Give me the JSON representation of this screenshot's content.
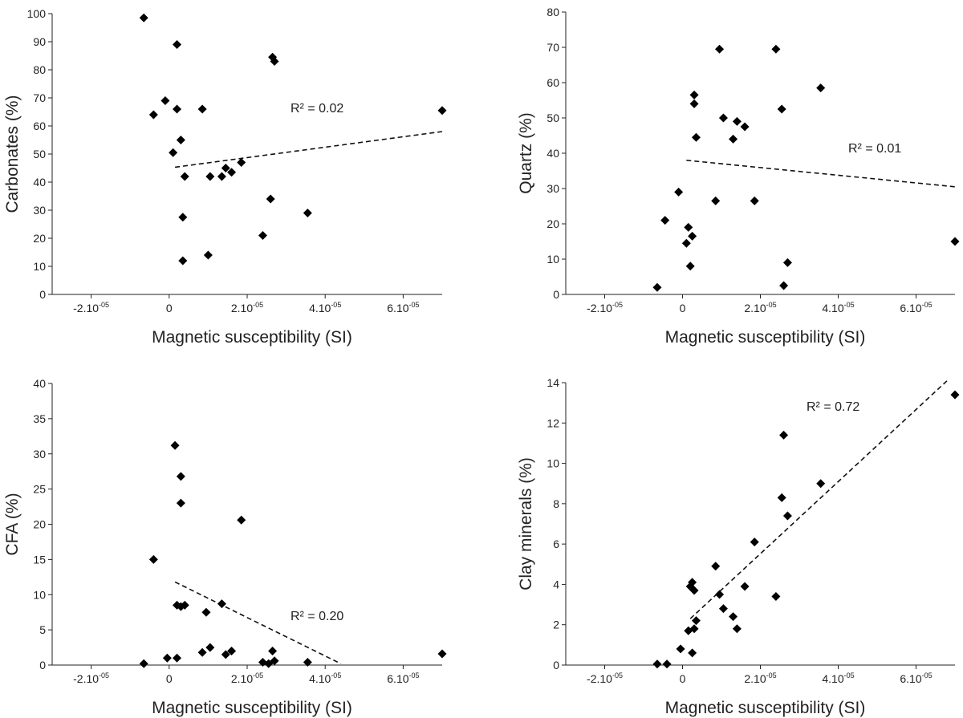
{
  "chart_data": [
    {
      "type": "scatter",
      "xlabel": "Magnetic susceptibility (SI)",
      "ylabel": "Carbonates (%)",
      "xlim": [
        -3e-05,
        7e-05
      ],
      "ylim": [
        0,
        100
      ],
      "yticks": [
        0,
        10,
        20,
        30,
        40,
        50,
        60,
        70,
        80,
        90,
        100
      ],
      "xticks": [
        {
          "value": -2e-05,
          "mantissa": "-2.10",
          "exponent": "-05"
        },
        {
          "value": 0,
          "mantissa": "0",
          "exponent": ""
        },
        {
          "value": 2e-05,
          "mantissa": "2.10",
          "exponent": "-05"
        },
        {
          "value": 4e-05,
          "mantissa": "4.10",
          "exponent": "-05"
        },
        {
          "value": 6e-05,
          "mantissa": "6.10",
          "exponent": "-05"
        }
      ],
      "grid": false,
      "r2_text": "R² = 0.02",
      "trendline": {
        "x": [
          1.5e-06,
          7e-05
        ],
        "y": [
          45.3,
          58
        ]
      },
      "points": [
        [
          -6.5e-06,
          98.5
        ],
        [
          -4e-06,
          64
        ],
        [
          -1e-06,
          69
        ],
        [
          1e-06,
          50.5
        ],
        [
          2e-06,
          89
        ],
        [
          2e-06,
          66
        ],
        [
          3e-06,
          55
        ],
        [
          3.5e-06,
          27.5
        ],
        [
          3.5e-06,
          12
        ],
        [
          4e-06,
          42
        ],
        [
          8.5e-06,
          66
        ],
        [
          1e-05,
          14
        ],
        [
          1.05e-05,
          42
        ],
        [
          1.35e-05,
          42
        ],
        [
          1.45e-05,
          45
        ],
        [
          1.6e-05,
          43.5
        ],
        [
          1.85e-05,
          47
        ],
        [
          2.4e-05,
          21
        ],
        [
          2.6e-05,
          34
        ],
        [
          2.65e-05,
          84.5
        ],
        [
          2.7e-05,
          83
        ],
        [
          3.55e-05,
          29
        ],
        [
          7e-05,
          65.5
        ]
      ]
    },
    {
      "type": "scatter",
      "xlabel": "Magnetic susceptibility (SI)",
      "ylabel": "Quartz (%)",
      "xlim": [
        -3e-05,
        7e-05
      ],
      "ylim": [
        0,
        80
      ],
      "yticks": [
        0,
        10,
        20,
        30,
        40,
        50,
        60,
        70,
        80
      ],
      "xticks": [
        {
          "value": -2e-05,
          "mantissa": "-2.10",
          "exponent": "-05"
        },
        {
          "value": 0,
          "mantissa": "0",
          "exponent": ""
        },
        {
          "value": 2e-05,
          "mantissa": "2.10",
          "exponent": "-05"
        },
        {
          "value": 4e-05,
          "mantissa": "4.10",
          "exponent": "-05"
        },
        {
          "value": 6e-05,
          "mantissa": "6.10",
          "exponent": "-05"
        }
      ],
      "grid": false,
      "r2_text": "R² = 0.01",
      "trendline": {
        "x": [
          1e-06,
          7e-05
        ],
        "y": [
          38,
          30.5
        ]
      },
      "points": [
        [
          -6.5e-06,
          2
        ],
        [
          -4.5e-06,
          21
        ],
        [
          -1e-06,
          29
        ],
        [
          1e-06,
          14.5
        ],
        [
          1.5e-06,
          19
        ],
        [
          2e-06,
          8
        ],
        [
          2.5e-06,
          16.5
        ],
        [
          3e-06,
          56.5
        ],
        [
          3e-06,
          54
        ],
        [
          3.5e-06,
          44.5
        ],
        [
          8.5e-06,
          26.5
        ],
        [
          9.5e-06,
          69.5
        ],
        [
          1.05e-05,
          50
        ],
        [
          1.3e-05,
          44
        ],
        [
          1.4e-05,
          49
        ],
        [
          1.6e-05,
          47.5
        ],
        [
          1.85e-05,
          26.5
        ],
        [
          2.4e-05,
          69.5
        ],
        [
          2.55e-05,
          52.5
        ],
        [
          2.6e-05,
          2.5
        ],
        [
          2.7e-05,
          9
        ],
        [
          3.55e-05,
          58.5
        ],
        [
          7e-05,
          15
        ]
      ]
    },
    {
      "type": "scatter",
      "xlabel": "Magnetic susceptibility (SI)",
      "ylabel": "CFA (%)",
      "xlim": [
        -3e-05,
        7e-05
      ],
      "ylim": [
        0,
        40
      ],
      "yticks": [
        0,
        5,
        10,
        15,
        20,
        25,
        30,
        35,
        40
      ],
      "xticks": [
        {
          "value": -2e-05,
          "mantissa": "-2.10",
          "exponent": "-05"
        },
        {
          "value": 0,
          "mantissa": "0",
          "exponent": ""
        },
        {
          "value": 2e-05,
          "mantissa": "2.10",
          "exponent": "-05"
        },
        {
          "value": 4e-05,
          "mantissa": "4.10",
          "exponent": "-05"
        },
        {
          "value": 6e-05,
          "mantissa": "6.10",
          "exponent": "-05"
        }
      ],
      "grid": false,
      "r2_text": "R² = 0.20",
      "trendline": {
        "x": [
          1.5e-06,
          4.4e-05
        ],
        "y": [
          11.8,
          0.2
        ]
      },
      "points": [
        [
          -6.5e-06,
          0.2
        ],
        [
          -4e-06,
          15
        ],
        [
          -5e-07,
          1
        ],
        [
          1.5e-06,
          31.2
        ],
        [
          2e-06,
          8.5
        ],
        [
          2e-06,
          1
        ],
        [
          3e-06,
          23
        ],
        [
          3e-06,
          26.8
        ],
        [
          3e-06,
          8.3
        ],
        [
          4e-06,
          8.5
        ],
        [
          8.5e-06,
          1.8
        ],
        [
          9.5e-06,
          7.5
        ],
        [
          1.05e-05,
          2.5
        ],
        [
          1.35e-05,
          8.7
        ],
        [
          1.45e-05,
          1.5
        ],
        [
          1.6e-05,
          2
        ],
        [
          1.85e-05,
          20.6
        ],
        [
          2.4e-05,
          0.4
        ],
        [
          2.55e-05,
          0.2
        ],
        [
          2.65e-05,
          2
        ],
        [
          2.7e-05,
          0.6
        ],
        [
          3.55e-05,
          0.4
        ],
        [
          7e-05,
          1.6
        ]
      ]
    },
    {
      "type": "scatter",
      "xlabel": "Magnetic susceptibility (SI)",
      "ylabel": "Clay minerals (%)",
      "xlim": [
        -3e-05,
        7e-05
      ],
      "ylim": [
        0,
        14
      ],
      "yticks": [
        0,
        2,
        4,
        6,
        8,
        10,
        12,
        14
      ],
      "xticks": [
        {
          "value": -2e-05,
          "mantissa": "-2.10",
          "exponent": "-05"
        },
        {
          "value": 0,
          "mantissa": "0",
          "exponent": ""
        },
        {
          "value": 2e-05,
          "mantissa": "2.10",
          "exponent": "-05"
        },
        {
          "value": 4e-05,
          "mantissa": "4.10",
          "exponent": "-05"
        },
        {
          "value": 6e-05,
          "mantissa": "6.10",
          "exponent": "-05"
        }
      ],
      "grid": false,
      "r2_text": "R² = 0.72",
      "trendline": {
        "x": [
          2e-06,
          6.8e-05
        ],
        "y": [
          2.3,
          14.1
        ]
      },
      "points": [
        [
          -6.5e-06,
          0.05
        ],
        [
          -4e-06,
          0.05
        ],
        [
          -5e-07,
          0.8
        ],
        [
          1.5e-06,
          1.7
        ],
        [
          2e-06,
          3.9
        ],
        [
          2.5e-06,
          0.6
        ],
        [
          2.5e-06,
          4.1
        ],
        [
          3e-06,
          3.7
        ],
        [
          3e-06,
          1.8
        ],
        [
          3.5e-06,
          2.2
        ],
        [
          8.5e-06,
          4.9
        ],
        [
          9.5e-06,
          3.5
        ],
        [
          1.05e-05,
          2.8
        ],
        [
          1.3e-05,
          2.4
        ],
        [
          1.4e-05,
          1.8
        ],
        [
          1.6e-05,
          3.9
        ],
        [
          1.85e-05,
          6.1
        ],
        [
          2.4e-05,
          3.4
        ],
        [
          2.55e-05,
          8.3
        ],
        [
          2.6e-05,
          11.4
        ],
        [
          2.7e-05,
          7.4
        ],
        [
          3.55e-05,
          9
        ],
        [
          7e-05,
          13.4
        ]
      ]
    }
  ]
}
